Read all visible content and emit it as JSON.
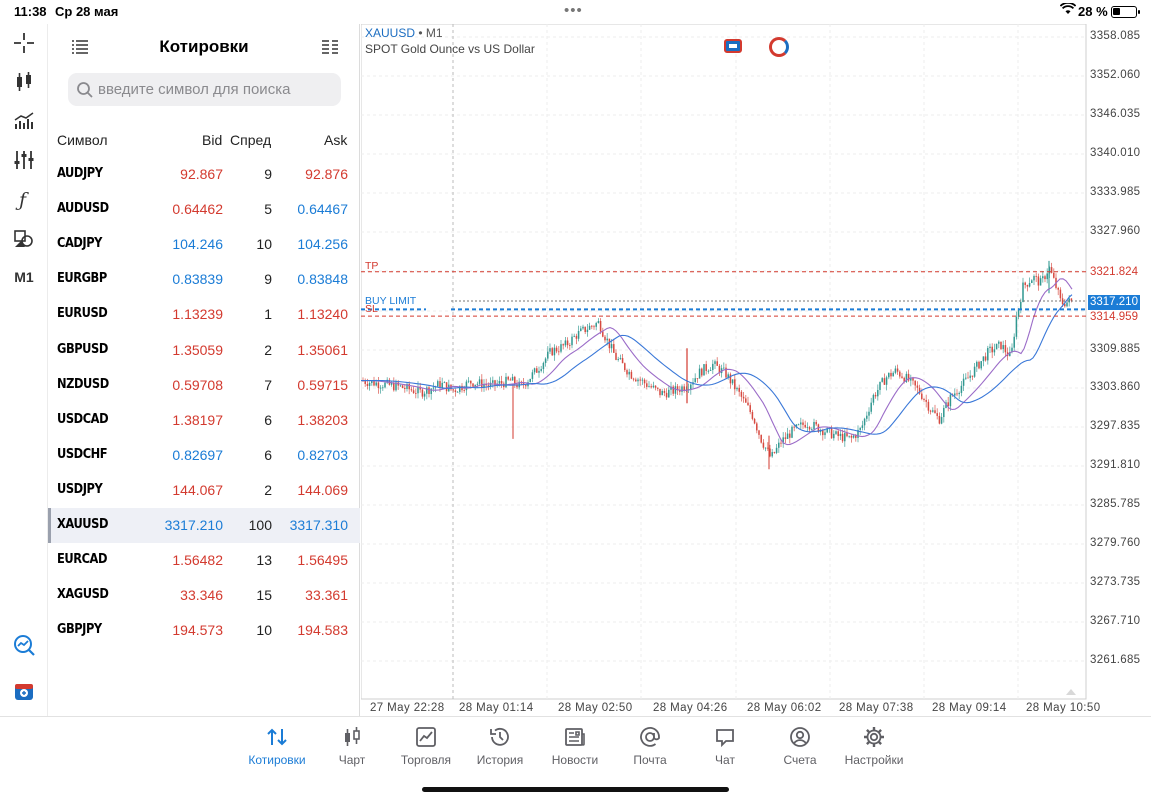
{
  "status": {
    "time": "11:38",
    "date": "Ср 28 мая",
    "battery": "28 %",
    "battery_level": 0.28
  },
  "rail": {
    "items": [
      "crosshair-icon",
      "candlestick-icon",
      "indicators-icon",
      "settings-sliders-icon",
      "function-icon",
      "objects-icon"
    ],
    "timeframe": "M1",
    "bottom_items": [
      "trade-chart-icon",
      "add-chart-icon"
    ]
  },
  "quotes": {
    "title": "Котировки",
    "search_placeholder": "введите символ для поиска",
    "columns": {
      "symbol": "Символ",
      "bid": "Bid",
      "spread": "Спред",
      "ask": "Ask"
    },
    "rows": [
      {
        "symbol": "AUDJPY",
        "bid": "92.867",
        "spread": "9",
        "ask": "92.876",
        "bid_color": "red",
        "ask_color": "red"
      },
      {
        "symbol": "AUDUSD",
        "bid": "0.64462",
        "spread": "5",
        "ask": "0.64467",
        "bid_color": "red",
        "ask_color": "blue"
      },
      {
        "symbol": "CADJPY",
        "bid": "104.246",
        "spread": "10",
        "ask": "104.256",
        "bid_color": "blue",
        "ask_color": "blue"
      },
      {
        "symbol": "EURGBP",
        "bid": "0.83839",
        "spread": "9",
        "ask": "0.83848",
        "bid_color": "blue",
        "ask_color": "blue"
      },
      {
        "symbol": "EURUSD",
        "bid": "1.13239",
        "spread": "1",
        "ask": "1.13240",
        "bid_color": "red",
        "ask_color": "red"
      },
      {
        "symbol": "GBPUSD",
        "bid": "1.35059",
        "spread": "2",
        "ask": "1.35061",
        "bid_color": "red",
        "ask_color": "red"
      },
      {
        "symbol": "NZDUSD",
        "bid": "0.59708",
        "spread": "7",
        "ask": "0.59715",
        "bid_color": "red",
        "ask_color": "red"
      },
      {
        "symbol": "USDCAD",
        "bid": "1.38197",
        "spread": "6",
        "ask": "1.38203",
        "bid_color": "red",
        "ask_color": "red"
      },
      {
        "symbol": "USDCHF",
        "bid": "0.82697",
        "spread": "6",
        "ask": "0.82703",
        "bid_color": "blue",
        "ask_color": "blue"
      },
      {
        "symbol": "USDJPY",
        "bid": "144.067",
        "spread": "2",
        "ask": "144.069",
        "bid_color": "red",
        "ask_color": "red"
      },
      {
        "symbol": "XAUUSD",
        "bid": "3317.210",
        "spread": "100",
        "ask": "3317.310",
        "bid_color": "blue",
        "ask_color": "blue",
        "selected": true
      },
      {
        "symbol": "EURCAD",
        "bid": "1.56482",
        "spread": "13",
        "ask": "1.56495",
        "bid_color": "red",
        "ask_color": "red"
      },
      {
        "symbol": "XAGUSD",
        "bid": "33.346",
        "spread": "15",
        "ask": "33.361",
        "bid_color": "red",
        "ask_color": "red"
      },
      {
        "symbol": "GBPJPY",
        "bid": "194.573",
        "spread": "10",
        "ask": "194.583",
        "bid_color": "red",
        "ask_color": "red"
      }
    ]
  },
  "chart": {
    "symbol": "XAUUSD",
    "separator": "•",
    "timeframe": "M1",
    "description": "SPOT Gold Ounce vs US Dollar",
    "y_ticks": [
      "3358.085",
      "3352.060",
      "3346.035",
      "3340.010",
      "3333.985",
      "3327.960",
      "3309.885",
      "3303.860",
      "3297.835",
      "3291.810",
      "3285.785",
      "3279.760",
      "3273.735",
      "3267.710",
      "3261.685"
    ],
    "x_ticks": [
      "27 May 22:28",
      "28 May 01:14",
      "28 May 02:50",
      "28 May 04:26",
      "28 May 06:02",
      "28 May 07:38",
      "28 May 09:14",
      "28 May 10:50"
    ],
    "levels": {
      "tp": {
        "label": "TP",
        "value": "3321.824"
      },
      "buy_limit": {
        "label": "BUY LIMIT"
      },
      "sl": {
        "label": "SL",
        "value": "3314.959"
      },
      "current": {
        "value": "3317.210"
      }
    },
    "colors": {
      "up": "#1f8f87",
      "down": "#d33a2f",
      "ma_fast": "#9b6cc8",
      "ma_slow": "#3a78d8"
    }
  },
  "tabs": [
    {
      "label": "Котировки",
      "icon": "quotes-icon",
      "active": true
    },
    {
      "label": "Чарт",
      "icon": "chart-icon"
    },
    {
      "label": "Торговля",
      "icon": "trade-icon"
    },
    {
      "label": "История",
      "icon": "history-icon"
    },
    {
      "label": "Новости",
      "icon": "news-icon"
    },
    {
      "label": "Почта",
      "icon": "mail-icon"
    },
    {
      "label": "Чат",
      "icon": "chat-icon"
    },
    {
      "label": "Счета",
      "icon": "accounts-icon"
    },
    {
      "label": "Настройки",
      "icon": "settings-icon"
    }
  ]
}
